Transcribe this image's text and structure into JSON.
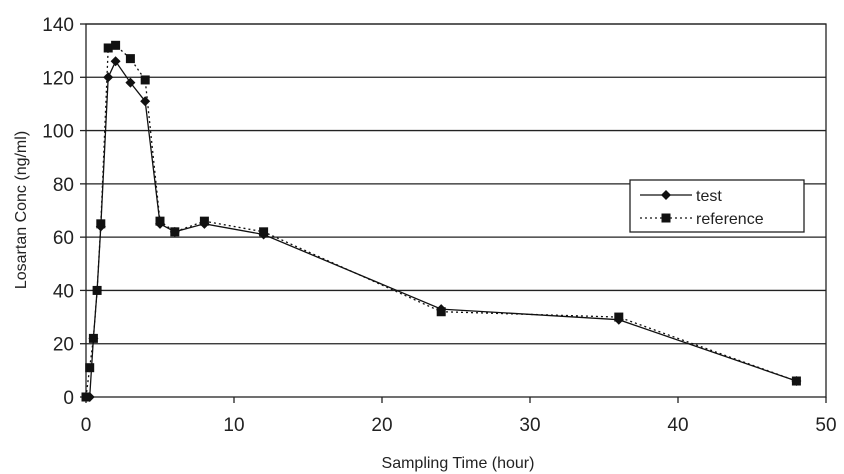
{
  "chart_data": {
    "type": "line",
    "xlabel": "Sampling Time (hour)",
    "ylabel": "Losartan Conc (ng/ml)",
    "xlim": [
      0,
      50
    ],
    "ylim": [
      0,
      140
    ],
    "x_ticks": [
      "0",
      "10",
      "20",
      "30",
      "40",
      "50"
    ],
    "y_ticks": [
      "0",
      "20",
      "40",
      "60",
      "80",
      "100",
      "120",
      "140"
    ],
    "grid": "horizontal",
    "legend_position": "right",
    "series": [
      {
        "name": "test",
        "marker": "diamond",
        "line_style": "solid",
        "color": "#111111",
        "x": [
          0,
          0.25,
          0.5,
          0.75,
          1,
          1.5,
          2,
          3,
          4,
          5,
          6,
          8,
          12,
          24,
          36,
          48
        ],
        "y": [
          0,
          0,
          22,
          40,
          64,
          120,
          126,
          118,
          111,
          65,
          62,
          65,
          61,
          33,
          29,
          6
        ]
      },
      {
        "name": "reference",
        "marker": "square",
        "line_style": "dotted",
        "color": "#111111",
        "x": [
          0,
          0.25,
          0.5,
          0.75,
          1,
          1.5,
          2,
          3,
          4,
          5,
          6,
          8,
          12,
          24,
          36,
          48
        ],
        "y": [
          0,
          11,
          22,
          40,
          65,
          131,
          132,
          127,
          119,
          66,
          62,
          66,
          62,
          32,
          30,
          6
        ]
      }
    ]
  }
}
